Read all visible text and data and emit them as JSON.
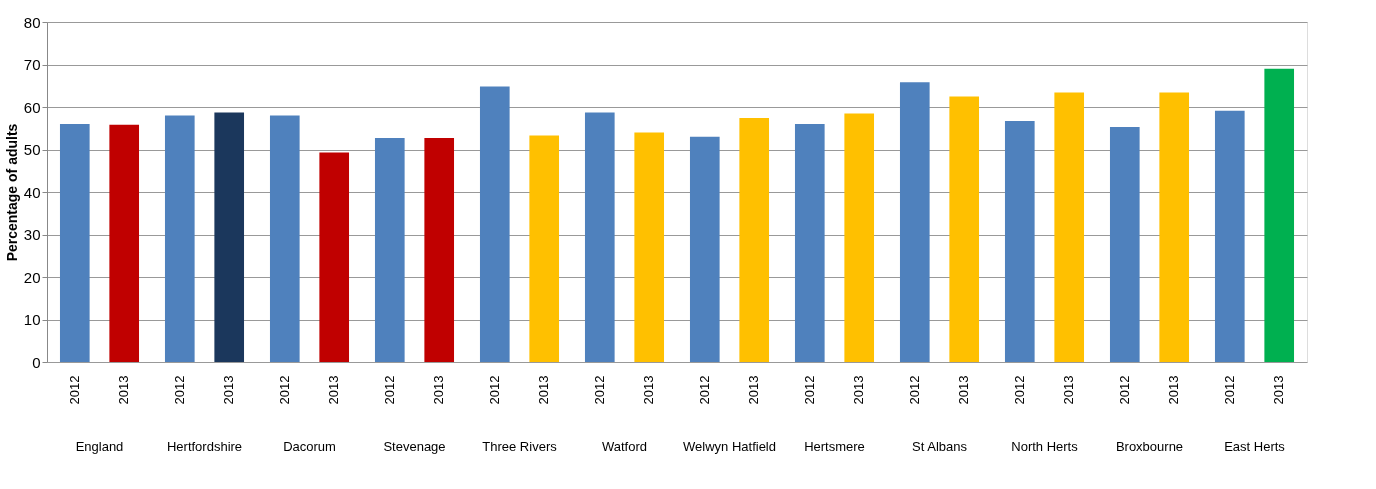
{
  "chart_data": {
    "type": "bar",
    "ylabel": "Percentage of adults",
    "categories": [
      "England",
      "Hertfordshire",
      "Dacorum",
      "Stevenage",
      "Three Rivers",
      "Watford",
      "Welwyn Hatfield",
      "Hertsmere",
      "St Albans",
      "North Herts",
      "Broxbourne",
      "East Herts"
    ],
    "series": [
      {
        "name": "2012",
        "color": "#4f81bd",
        "values": [
          56.0,
          58.0,
          58.0,
          52.7,
          64.8,
          58.7,
          53.0,
          56.0,
          65.8,
          56.7,
          55.3,
          59.1
        ]
      },
      {
        "name": "2013",
        "colors": [
          "#c00000",
          "#1b375c",
          "#c00000",
          "#c00000",
          "#ffc000",
          "#ffc000",
          "#ffc000",
          "#ffc000",
          "#ffc000",
          "#ffc000",
          "#ffc000",
          "#00b050"
        ],
        "values": [
          55.8,
          58.7,
          49.3,
          52.7,
          53.3,
          54.0,
          57.4,
          58.5,
          62.5,
          63.4,
          63.4,
          69.0
        ]
      }
    ],
    "ylim": [
      0,
      80
    ],
    "yticks": [
      0,
      10,
      20,
      30,
      40,
      50,
      60,
      70,
      80
    ],
    "grid": "y"
  }
}
